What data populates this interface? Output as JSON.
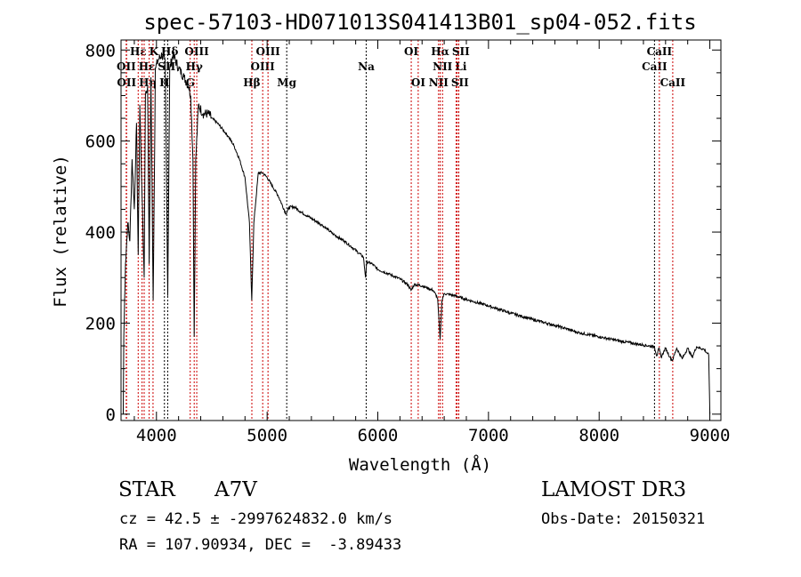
{
  "chart_data": {
    "type": "line",
    "title": "spec-57103-HD071013S041413B01_sp04-052.fits",
    "xlabel": "Wavelength (Å)",
    "ylabel": "Flux (relative)",
    "xlim": [
      3680,
      9100
    ],
    "ylim": [
      -14,
      822
    ],
    "xticks": [
      4000,
      5000,
      6000,
      7000,
      8000,
      9000
    ],
    "yticks": [
      0,
      200,
      400,
      600,
      800
    ],
    "grid": false,
    "series": [
      {
        "name": "spectrum",
        "color": "#000000",
        "x": [
          3700,
          3705,
          3720,
          3740,
          3760,
          3780,
          3800,
          3820,
          3835,
          3850,
          3870,
          3889,
          3900,
          3920,
          3934,
          3950,
          3970,
          3990,
          4020,
          4050,
          4080,
          4102,
          4120,
          4150,
          4200,
          4250,
          4290,
          4310,
          4330,
          4341,
          4355,
          4380,
          4420,
          4470,
          4500,
          4550,
          4600,
          4650,
          4700,
          4750,
          4800,
          4840,
          4861,
          4880,
          4920,
          4960,
          5000,
          5050,
          5100,
          5170,
          5200,
          5250,
          5300,
          5400,
          5500,
          5600,
          5700,
          5800,
          5870,
          5890,
          5900,
          5950,
          6000,
          6100,
          6200,
          6270,
          6300,
          6330,
          6400,
          6500,
          6540,
          6563,
          6580,
          6600,
          6700,
          6800,
          7000,
          7200,
          7400,
          7600,
          7700,
          7800,
          8000,
          8200,
          8400,
          8500,
          8520,
          8540,
          8560,
          8600,
          8640,
          8662,
          8700,
          8750,
          8800,
          8840,
          8880,
          8950,
          8990,
          9000
        ],
        "y": [
          0,
          170,
          330,
          420,
          380,
          560,
          450,
          640,
          350,
          680,
          480,
          300,
          700,
          720,
          330,
          740,
          250,
          760,
          780,
          790,
          770,
          260,
          760,
          790,
          760,
          740,
          720,
          700,
          560,
          170,
          560,
          680,
          660,
          660,
          650,
          640,
          625,
          610,
          590,
          560,
          520,
          420,
          250,
          420,
          530,
          530,
          520,
          500,
          480,
          440,
          455,
          455,
          445,
          430,
          415,
          395,
          380,
          360,
          345,
          300,
          335,
          330,
          318,
          308,
          297,
          285,
          272,
          285,
          282,
          272,
          255,
          165,
          250,
          265,
          260,
          252,
          238,
          222,
          208,
          195,
          188,
          180,
          170,
          160,
          152,
          148,
          128,
          145,
          125,
          145,
          125,
          118,
          145,
          122,
          145,
          125,
          148,
          142,
          130,
          0
        ]
      }
    ],
    "line_markers": [
      {
        "label": "OII",
        "wave": 3727,
        "row": 2,
        "color": "#cc0000"
      },
      {
        "label": "OII",
        "wave": 3730,
        "row": 3,
        "color": "#cc0000"
      },
      {
        "label": "Hε",
        "wave": 3835,
        "row": 1,
        "color": "#cc0000"
      },
      {
        "label": "Hε",
        "wave": 3870,
        "row": 2,
        "color": "#cc0000"
      },
      {
        "label": "Hη",
        "wave": 3889,
        "row": 3,
        "color": "#cc0000"
      },
      {
        "label": "K",
        "wave": 3934,
        "row": 1,
        "color": "#cc0000"
      },
      {
        "label": "H",
        "wave": 3969,
        "row": 3,
        "color": "#cc0000"
      },
      {
        "label": "SII",
        "wave": 4072,
        "row": 2,
        "color": "#000000"
      },
      {
        "label": "Hδ",
        "wave": 4102,
        "row": 1,
        "color": "#000000"
      },
      {
        "label": "G",
        "wave": 4305,
        "row": 3,
        "color": "#cc0000"
      },
      {
        "label": "Hγ",
        "wave": 4341,
        "row": 2,
        "color": "#cc0000"
      },
      {
        "label": "OIII",
        "wave": 4364,
        "row": 1,
        "color": "#cc0000"
      },
      {
        "label": "Hβ",
        "wave": 4862,
        "row": 3,
        "color": "#cc0000"
      },
      {
        "label": "OIII",
        "wave": 4960,
        "row": 2,
        "color": "#cc0000"
      },
      {
        "label": "OIII",
        "wave": 5008,
        "row": 1,
        "color": "#cc0000"
      },
      {
        "label": "Mg",
        "wave": 5177,
        "row": 3,
        "color": "#000000"
      },
      {
        "label": "Na",
        "wave": 5895,
        "row": 2,
        "color": "#000000"
      },
      {
        "label": "OI",
        "wave": 6302,
        "row": 1,
        "color": "#cc0000"
      },
      {
        "label": "OI",
        "wave": 6365,
        "row": 3,
        "color": "#cc0000"
      },
      {
        "label": "NII",
        "wave": 6549,
        "row": 3,
        "color": "#cc0000"
      },
      {
        "label": "Hα",
        "wave": 6564,
        "row": 1,
        "color": "#cc0000"
      },
      {
        "label": "NII",
        "wave": 6585,
        "row": 2,
        "color": "#cc0000"
      },
      {
        "label": "Li",
        "wave": 6708,
        "row": 2,
        "color": "#cc0000"
      },
      {
        "label": "SII",
        "wave": 6718,
        "row": 1,
        "color": "#cc0000"
      },
      {
        "label": "SII",
        "wave": 6732,
        "row": 3,
        "color": "#cc0000"
      },
      {
        "label": "CaII",
        "wave": 8500,
        "row": 2,
        "color": "#000000"
      },
      {
        "label": "CaII",
        "wave": 8544,
        "row": 1,
        "color": "#cc0000"
      },
      {
        "label": "CaII",
        "wave": 8665,
        "row": 3,
        "color": "#cc0000"
      }
    ]
  },
  "info": {
    "object_class": "STAR",
    "subclass": "A7V",
    "survey": "LAMOST DR3",
    "cz_line": "cz = 42.5 ± -2997624832.0 km/s",
    "obs_date": "Obs-Date: 20150321",
    "coords": "RA = 107.90934, DEC =  -3.89433"
  }
}
